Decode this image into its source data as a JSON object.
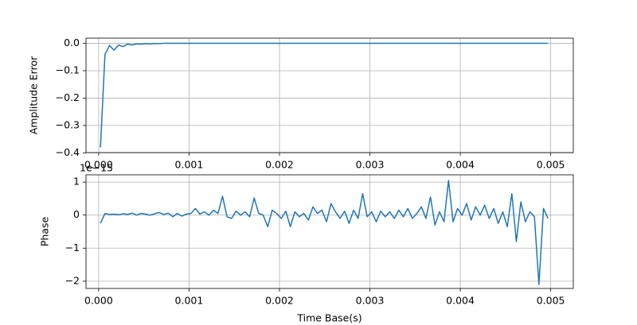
{
  "chart_data": [
    {
      "type": "line",
      "ylabel": "Amplitude Error",
      "color": "#1f77b4",
      "grid": true,
      "xlim": [
        -0.00014,
        0.00525
      ],
      "ylim": [
        -0.399,
        0.019
      ],
      "xticks": [
        {
          "value": 0,
          "label": "0.000"
        },
        0.001,
        0.002,
        0.003,
        0.004,
        0.005
      ],
      "yticks": [
        {
          "value": 0,
          "label": "0.0"
        },
        {
          "value": -0.1,
          "label": "−0.1"
        },
        {
          "value": -0.2,
          "label": "−0.2"
        },
        {
          "value": -0.3,
          "label": "−0.3"
        },
        {
          "value": -0.4,
          "label": "−0.4"
        }
      ],
      "x": [
        2e-05,
        7e-05,
        0.00012,
        0.00017,
        0.00022,
        0.00027,
        0.00032,
        0.00037,
        0.00042,
        0.00047,
        0.00052,
        0.00057,
        0.00062,
        0.00067,
        0.00072,
        0.00077,
        0.00082,
        0.00087,
        0.00092,
        0.00097,
        0.00102,
        0.00107,
        0.00112,
        0.00117,
        0.00122,
        0.00127,
        0.00132,
        0.00137,
        0.00142,
        0.00147,
        0.00152,
        0.00157,
        0.00162,
        0.00167,
        0.00172,
        0.00177,
        0.00182,
        0.00187,
        0.00192,
        0.00197,
        0.00202,
        0.00207,
        0.00212,
        0.00217,
        0.00222,
        0.00227,
        0.00232,
        0.00237,
        0.00242,
        0.00247,
        0.00252,
        0.00257,
        0.00262,
        0.00267,
        0.00272,
        0.00277,
        0.00282,
        0.00287,
        0.00292,
        0.00297,
        0.00302,
        0.00307,
        0.00312,
        0.00317,
        0.00322,
        0.00327,
        0.00332,
        0.00337,
        0.00342,
        0.00347,
        0.00352,
        0.00357,
        0.00362,
        0.00367,
        0.00372,
        0.00377,
        0.00382,
        0.00387,
        0.00392,
        0.00397,
        0.00402,
        0.00407,
        0.00412,
        0.00417,
        0.00422,
        0.00427,
        0.00432,
        0.00437,
        0.00442,
        0.00447,
        0.00452,
        0.00457,
        0.00462,
        0.00467,
        0.00472,
        0.00477,
        0.00482,
        0.00487,
        0.00492,
        0.00497
      ],
      "values": [
        -0.38,
        -0.04,
        -0.008,
        -0.025,
        -0.006,
        -0.012,
        -0.003,
        -0.006,
        -0.002,
        -0.003,
        -0.001,
        -0.002,
        -0.001,
        -0.001,
        0,
        0,
        0,
        0,
        0,
        0,
        0,
        0,
        0,
        0,
        0,
        0,
        0,
        0,
        0,
        0,
        0,
        0,
        0,
        0,
        0,
        0,
        0,
        0,
        0,
        0,
        0,
        0,
        0,
        0,
        0,
        0,
        0,
        0,
        0,
        0,
        0,
        0,
        0,
        0,
        0,
        0,
        0,
        0,
        0,
        0,
        0,
        0,
        0,
        0,
        0,
        0,
        0,
        0,
        0,
        0,
        0,
        0,
        0,
        0,
        0,
        0,
        0,
        0,
        0,
        0,
        0,
        0,
        0,
        0,
        0,
        0,
        0,
        0,
        0,
        0,
        0,
        0,
        0,
        0,
        0,
        0,
        0,
        0,
        0,
        0
      ]
    },
    {
      "type": "line",
      "ylabel": "Phase",
      "xlabel": "Time Base(s)",
      "offset_text": "1e−15",
      "color": "#1f77b4",
      "grid": true,
      "xlim": [
        -0.00014,
        0.00525
      ],
      "ylim": [
        -2.22,
        1.22
      ],
      "xticks": [
        {
          "value": 0,
          "label": "0.000"
        },
        0.001,
        0.002,
        0.003,
        0.004,
        0.005
      ],
      "yticks": [
        1,
        0,
        {
          "value": -1,
          "label": "−1"
        },
        {
          "value": -2,
          "label": "−2"
        }
      ],
      "x": [
        2e-05,
        7e-05,
        0.00012,
        0.00017,
        0.00022,
        0.00027,
        0.00032,
        0.00037,
        0.00042,
        0.00047,
        0.00052,
        0.00057,
        0.00062,
        0.00067,
        0.00072,
        0.00077,
        0.00082,
        0.00087,
        0.00092,
        0.00097,
        0.00102,
        0.00107,
        0.00112,
        0.00117,
        0.00122,
        0.00127,
        0.00132,
        0.00137,
        0.00142,
        0.00147,
        0.00152,
        0.00157,
        0.00162,
        0.00167,
        0.00172,
        0.00177,
        0.00182,
        0.00187,
        0.00192,
        0.00197,
        0.00202,
        0.00207,
        0.00212,
        0.00217,
        0.00222,
        0.00227,
        0.00232,
        0.00237,
        0.00242,
        0.00247,
        0.00252,
        0.00257,
        0.00262,
        0.00267,
        0.00272,
        0.00277,
        0.00282,
        0.00287,
        0.00292,
        0.00297,
        0.00302,
        0.00307,
        0.00312,
        0.00317,
        0.00322,
        0.00327,
        0.00332,
        0.00337,
        0.00342,
        0.00347,
        0.00352,
        0.00357,
        0.00362,
        0.00367,
        0.00372,
        0.00377,
        0.00382,
        0.00387,
        0.00392,
        0.00397,
        0.00402,
        0.00407,
        0.00412,
        0.00417,
        0.00422,
        0.00427,
        0.00432,
        0.00437,
        0.00442,
        0.00447,
        0.00452,
        0.00457,
        0.00462,
        0.00467,
        0.00472,
        0.00477,
        0.00482,
        0.00487,
        0.00492,
        0.00497
      ],
      "values": [
        -0.25,
        0.05,
        0.02,
        0.03,
        0.01,
        0.04,
        0.02,
        0.06,
        0.0,
        0.05,
        0.03,
        0.0,
        0.04,
        0.08,
        0.02,
        0.06,
        -0.05,
        0.05,
        -0.03,
        0.03,
        0.05,
        0.2,
        0.03,
        0.1,
        0.0,
        0.15,
        0.05,
        0.57,
        -0.05,
        -0.1,
        0.12,
        0.0,
        0.1,
        -0.05,
        0.52,
        0.05,
        0.0,
        -0.35,
        0.15,
        0.05,
        -0.1,
        0.12,
        -0.35,
        0.1,
        -0.05,
        0.05,
        -0.15,
        0.25,
        0.05,
        0.15,
        -0.2,
        0.35,
        0.1,
        -0.1,
        0.12,
        -0.25,
        0.15,
        -0.1,
        0.65,
        -0.05,
        0.1,
        -0.2,
        0.12,
        -0.05,
        0.1,
        -0.1,
        0.15,
        -0.05,
        0.2,
        -0.1,
        0.05,
        0.25,
        -0.1,
        0.55,
        -0.3,
        0.1,
        -0.2,
        1.05,
        -0.2,
        0.2,
        0.0,
        0.35,
        -0.15,
        0.25,
        0.0,
        0.3,
        -0.1,
        0.2,
        -0.25,
        0.1,
        -0.35,
        0.65,
        -0.8,
        0.4,
        -0.2,
        0.1,
        -0.05,
        -2.1,
        0.2,
        -0.1
      ]
    }
  ]
}
